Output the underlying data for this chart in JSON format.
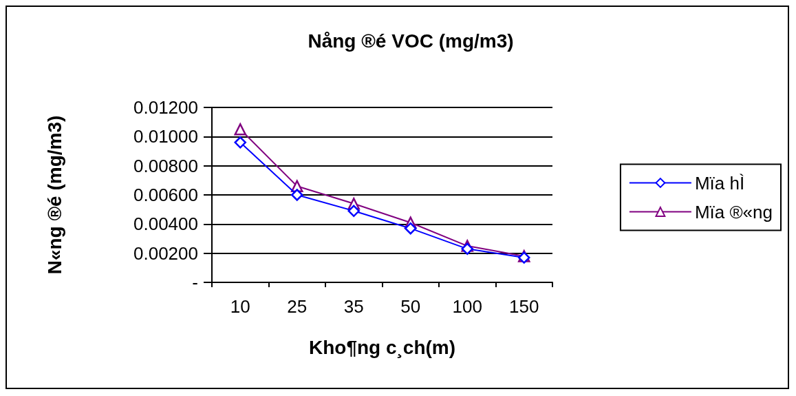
{
  "chart_data": {
    "type": "line",
    "title": "Nång ®é VOC (mg/m3)",
    "xlabel": "Kho¶ng c¸ch(m)",
    "ylabel": "N«ng ®é (mg/m3)",
    "categories": [
      "10",
      "25",
      "35",
      "50",
      "100",
      "150"
    ],
    "series": [
      {
        "name": "Mïa hÌ",
        "color": "#0000ff",
        "marker": "diamond",
        "values": [
          0.0096,
          0.006,
          0.0049,
          0.0037,
          0.0023,
          0.0017
        ]
      },
      {
        "name": "Mïa ®«ng",
        "color": "#800080",
        "marker": "triangle",
        "values": [
          0.0105,
          0.0066,
          0.0054,
          0.0041,
          0.0025,
          0.0018
        ]
      }
    ],
    "ylim": [
      0,
      0.012
    ],
    "yticks": [
      {
        "value": 0,
        "label": "-"
      },
      {
        "value": 0.002,
        "label": "0.00200"
      },
      {
        "value": 0.004,
        "label": "0.00400"
      },
      {
        "value": 0.006,
        "label": "0.00600"
      },
      {
        "value": 0.008,
        "label": "0.00800"
      },
      {
        "value": 0.01,
        "label": "0.01000"
      },
      {
        "value": 0.012,
        "label": "0.01200"
      }
    ],
    "grid": "y",
    "legend": "right",
    "line_style": "solid"
  }
}
